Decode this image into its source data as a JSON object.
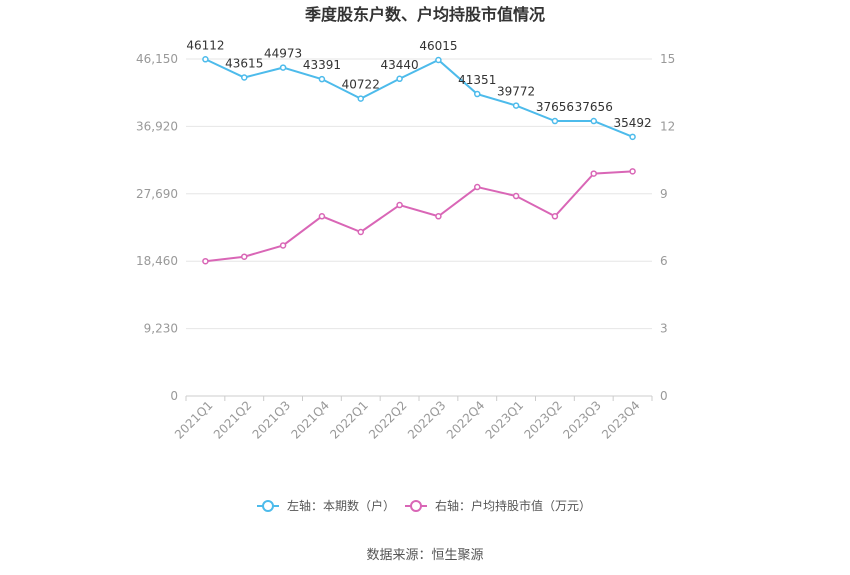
{
  "chart_data": {
    "type": "line",
    "title": "季度股东户数、户均持股市值情况",
    "categories": [
      "2021Q1",
      "2021Q2",
      "2021Q3",
      "2021Q4",
      "2022Q1",
      "2022Q2",
      "2022Q3",
      "2022Q4",
      "2023Q1",
      "2023Q2",
      "2023Q3",
      "2023Q4"
    ],
    "left_axis": {
      "ticks": [
        "46,150",
        "36,920",
        "27,690",
        "18,460",
        "9,230",
        "0"
      ],
      "ylim": [
        0,
        46150
      ]
    },
    "right_axis": {
      "ticks": [
        "15",
        "12",
        "9",
        "6",
        "3",
        "0"
      ],
      "ylim": [
        0,
        15
      ]
    },
    "series": [
      {
        "name": "左轴：本期数（户）",
        "axis": "left",
        "color": "#4dbbeb",
        "values": [
          46112,
          43615,
          44973,
          43391,
          40722,
          43440,
          46015,
          41351,
          39772,
          37656,
          37656,
          35492
        ],
        "labels": [
          "46112",
          "43615",
          "44973",
          "43391",
          "40722",
          "43440",
          "46015",
          "41351",
          "39772",
          "37656",
          "37656",
          "35492"
        ]
      },
      {
        "name": "右轴：户均持股市值（万元）",
        "axis": "right",
        "color": "#d966b6",
        "values": [
          6.0,
          6.2,
          6.7,
          8.0,
          7.3,
          8.5,
          8.0,
          9.3,
          8.9,
          8.0,
          9.9,
          10.0
        ]
      }
    ],
    "grid": true,
    "legend_position": "bottom"
  },
  "source": "数据来源：恒生聚源"
}
